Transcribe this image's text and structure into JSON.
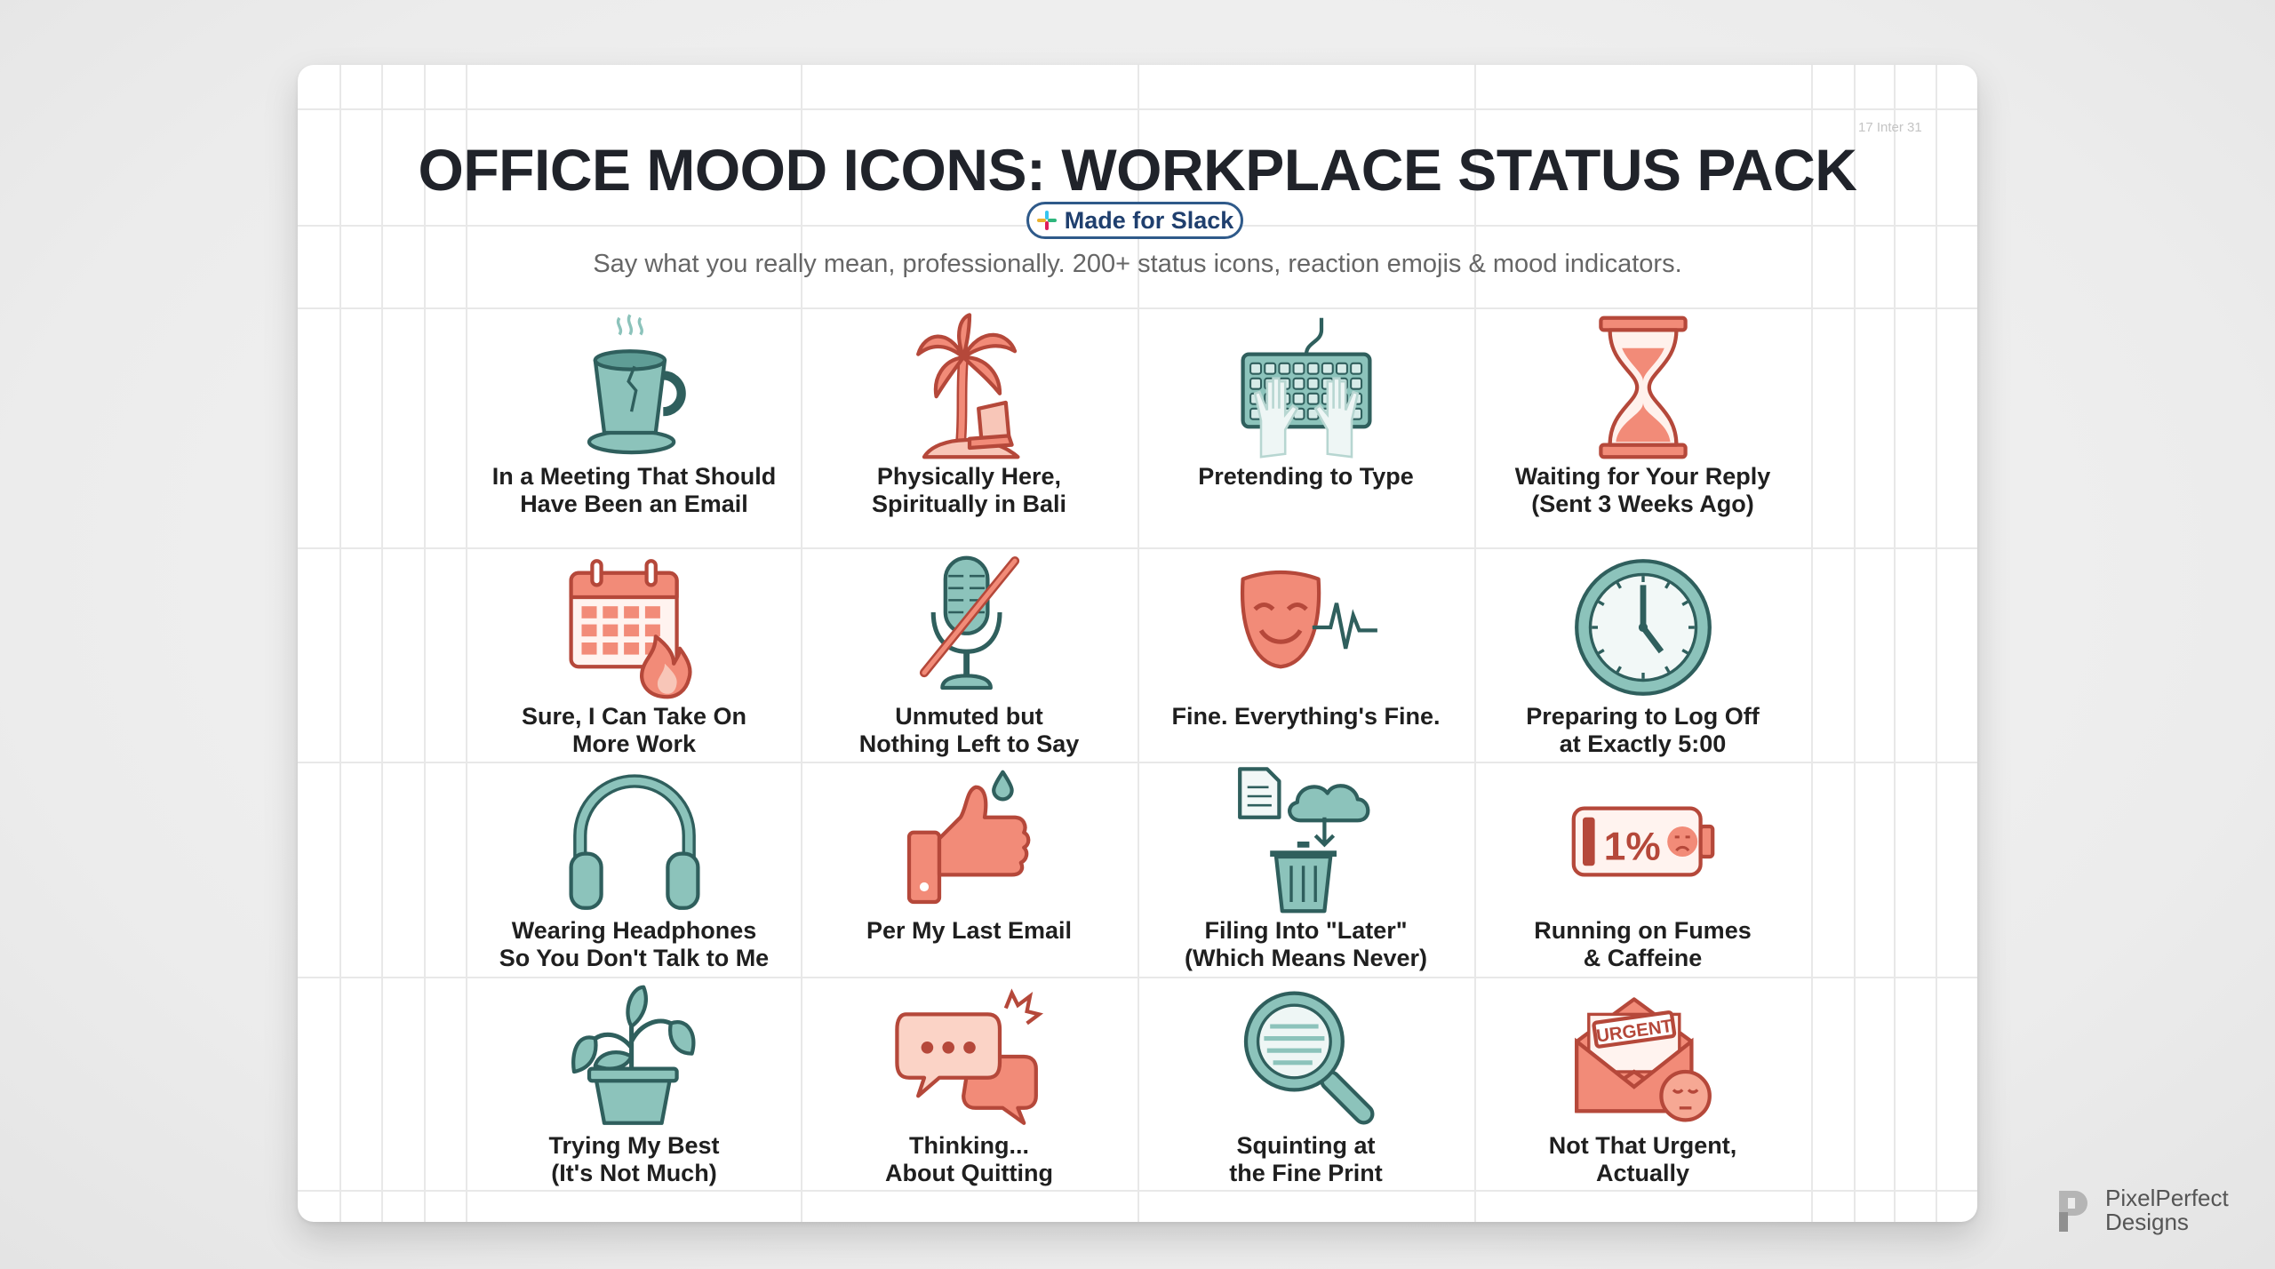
{
  "header": {
    "title": "OFFICE MOOD ICONS: WORKPLACE STATUS PACK",
    "badge_label": "Made for Slack",
    "badge_icon": "slack-logo-icon",
    "subtitle": "Say what you really mean, professionally. 200+ status icons, reaction emojis & mood indicators.",
    "corner_note": "17 Inter 31"
  },
  "colors": {
    "teal": "#8cc3bb",
    "teal_dark": "#2f5f5d",
    "coral": "#f28b78",
    "coral_dark": "#b5483a",
    "title": "#20232a",
    "badge_border": "#2f5a8a"
  },
  "items": [
    {
      "icon": "cracked-coffee-cup-icon",
      "line1": "In a Meeting That Should",
      "line2": "Have Been an Email"
    },
    {
      "icon": "palm-tree-laptop-icon",
      "line1": "Physically Here,",
      "line2": "Spiritually in Bali"
    },
    {
      "icon": "keyboard-hands-icon",
      "line1": "Pretending to Type",
      "line2": ""
    },
    {
      "icon": "hourglass-icon",
      "line1": "Waiting for Your Reply",
      "line2": "(Sent 3 Weeks Ago)"
    },
    {
      "icon": "calendar-fire-icon",
      "line1": "Sure, I Can Take On",
      "line2": "More Work"
    },
    {
      "icon": "muted-microphone-icon",
      "line1": "Unmuted but",
      "line2": "Nothing Left to Say"
    },
    {
      "icon": "smiling-mask-heartbeat-icon",
      "line1": "Fine. Everything's Fine.",
      "line2": ""
    },
    {
      "icon": "clock-icon",
      "line1": "Preparing to Log Off",
      "line2": "at Exactly 5:00"
    },
    {
      "icon": "headphones-icon",
      "line1": "Wearing Headphones",
      "line2": "So You Don't Talk to Me"
    },
    {
      "icon": "thumbs-up-sweat-icon",
      "line1": "Per My Last Email",
      "line2": ""
    },
    {
      "icon": "document-cloud-trash-icon",
      "line1": "Filing Into \"Later\"",
      "line2": "(Which Means Never)"
    },
    {
      "icon": "low-battery-icon",
      "battery_text": "1%",
      "line1": "Running on Fumes",
      "line2": "& Caffeine"
    },
    {
      "icon": "potted-plant-icon",
      "line1": "Trying My Best",
      "line2": "(It's Not Much)"
    },
    {
      "icon": "speech-bubbles-icon",
      "line1": "Thinking...",
      "line2": "About Quitting"
    },
    {
      "icon": "magnifying-glass-icon",
      "line1": "Squinting at",
      "line2": "the Fine Print"
    },
    {
      "icon": "urgent-envelope-icon",
      "envelope_text": "URGENT",
      "line1": "Not That Urgent,",
      "line2": "Actually"
    }
  ],
  "brand": {
    "name_line1": "PixelPerfect",
    "name_line2": "Designs",
    "logo": "pixelperfect-p-logo"
  }
}
